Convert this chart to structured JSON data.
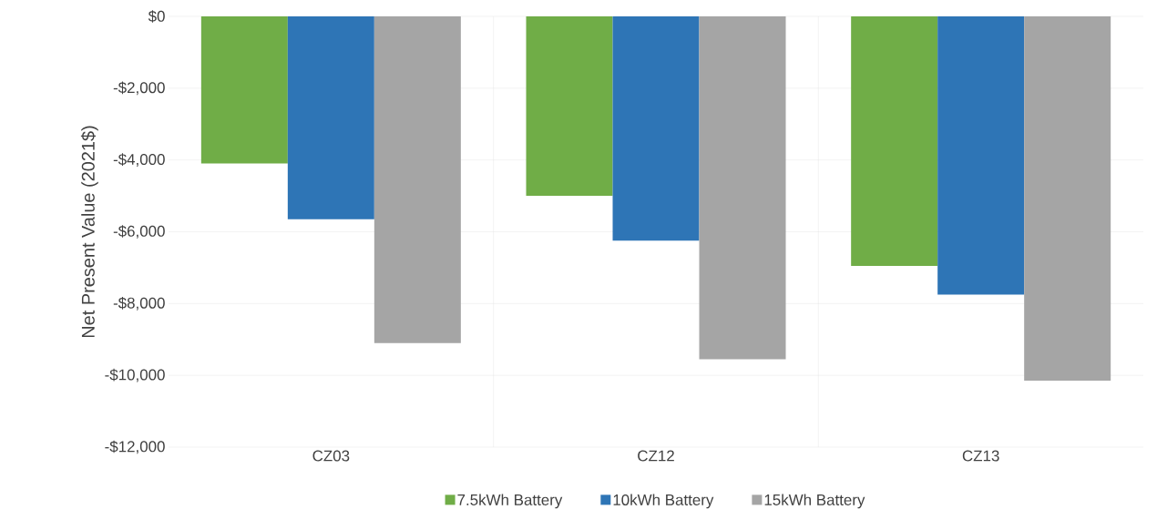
{
  "chart_data": {
    "type": "bar",
    "ylabel": "Net Present Value (2021$)",
    "categories": [
      "CZ03",
      "CZ12",
      "CZ13"
    ],
    "series": [
      {
        "name": "7.5kWh Battery",
        "color": "#70ad47",
        "values": [
          -4100,
          -5000,
          -6950
        ]
      },
      {
        "name": "10kWh Battery",
        "color": "#2e75b6",
        "values": [
          -5650,
          -6250,
          -7750
        ]
      },
      {
        "name": "15kWh Battery",
        "color": "#a5a5a5",
        "values": [
          -9100,
          -9550,
          -10150
        ]
      }
    ],
    "ylim": [
      -12000,
      0
    ],
    "yticks": [
      {
        "value": -12000,
        "label": "-$12,000"
      },
      {
        "value": -10000,
        "label": "-$10,000"
      },
      {
        "value": -8000,
        "label": "-$8,000"
      },
      {
        "value": -6000,
        "label": "-$6,000"
      },
      {
        "value": -4000,
        "label": "-$4,000"
      },
      {
        "value": -2000,
        "label": "-$2,000"
      },
      {
        "value": 0,
        "label": "$0"
      }
    ],
    "grid": true,
    "legend": "bottom"
  }
}
